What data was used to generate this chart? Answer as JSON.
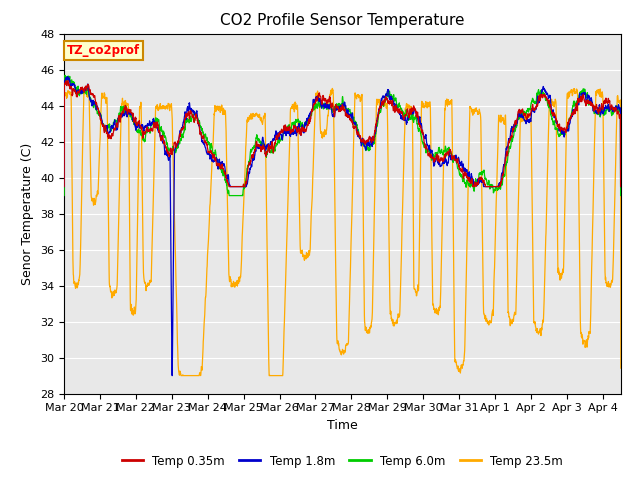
{
  "title": "CO2 Profile Sensor Temperature",
  "xlabel": "Time",
  "ylabel": "Senor Temperature (C)",
  "ylim": [
    28,
    48
  ],
  "yticks": [
    28,
    30,
    32,
    34,
    36,
    38,
    40,
    42,
    44,
    46,
    48
  ],
  "xlim_days": [
    0,
    15.5
  ],
  "xtick_labels": [
    "Mar 20",
    "Mar 21",
    "Mar 22",
    "Mar 23",
    "Mar 24",
    "Mar 25",
    "Mar 26",
    "Mar 27",
    "Mar 28",
    "Mar 29",
    "Mar 30",
    "Mar 31",
    "Apr 1",
    "Apr 2",
    "Apr 3",
    "Apr 4"
  ],
  "xtick_positions": [
    0,
    1,
    2,
    3,
    4,
    5,
    6,
    7,
    8,
    9,
    10,
    11,
    12,
    13,
    14,
    15
  ],
  "colors": {
    "temp035": "#cc0000",
    "temp18": "#0000cc",
    "temp60": "#00cc00",
    "temp235": "#ffaa00"
  },
  "legend_labels": [
    "Temp 0.35m",
    "Temp 1.8m",
    "Temp 6.0m",
    "Temp 23.5m"
  ],
  "annotation_text": "TZ_co2prof",
  "annotation_bg": "#ffffcc",
  "annotation_border": "#cc8800",
  "background_color": "#e8e8e8",
  "grid_color": "#ffffff",
  "title_fontsize": 11,
  "axis_fontsize": 9,
  "tick_fontsize": 8
}
